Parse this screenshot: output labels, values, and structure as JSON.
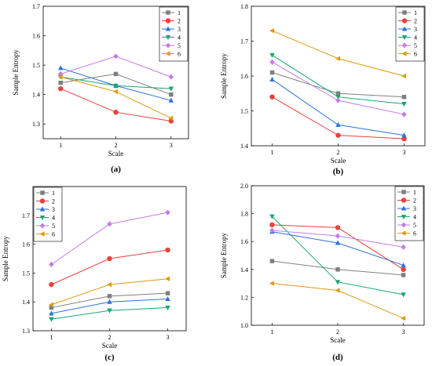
{
  "chart_data": [
    {
      "type": "line",
      "panel_label": "(a)",
      "x": [
        1,
        2,
        3
      ],
      "x_ticks": [
        "1",
        "2",
        "3"
      ],
      "xlabel": "Scale",
      "ylabel": "Sample Entropy",
      "ylim": [
        1.25,
        1.7
      ],
      "y_ticks": [
        "1.3",
        "1.4",
        "1.5",
        "1.6",
        "1.7"
      ],
      "legend_position": "top-right",
      "series": [
        {
          "name": "1",
          "values": [
            1.44,
            1.47,
            1.4
          ]
        },
        {
          "name": "2",
          "values": [
            1.42,
            1.34,
            1.31
          ]
        },
        {
          "name": "3",
          "values": [
            1.49,
            1.43,
            1.38
          ]
        },
        {
          "name": "4",
          "values": [
            1.46,
            1.43,
            1.42
          ]
        },
        {
          "name": "5",
          "values": [
            1.47,
            1.53,
            1.46
          ]
        },
        {
          "name": "6",
          "values": [
            1.46,
            1.41,
            1.32
          ]
        }
      ]
    },
    {
      "type": "line",
      "panel_label": "(b)",
      "x": [
        1,
        2,
        3
      ],
      "x_ticks": [
        "1",
        "2",
        "3"
      ],
      "xlabel": "Scale",
      "ylabel": "Sample Entropy",
      "ylim": [
        1.4,
        1.8
      ],
      "y_ticks": [
        "1.4",
        "1.5",
        "1.6",
        "1.7",
        "1.8"
      ],
      "legend_position": "top-right",
      "series": [
        {
          "name": "1",
          "values": [
            1.61,
            1.55,
            1.54
          ]
        },
        {
          "name": "2",
          "values": [
            1.54,
            1.43,
            1.42
          ]
        },
        {
          "name": "3",
          "values": [
            1.59,
            1.46,
            1.43
          ]
        },
        {
          "name": "4",
          "values": [
            1.66,
            1.54,
            1.52
          ]
        },
        {
          "name": "5",
          "values": [
            1.64,
            1.53,
            1.49
          ]
        },
        {
          "name": "6",
          "values": [
            1.73,
            1.65,
            1.6
          ]
        }
      ]
    },
    {
      "type": "line",
      "panel_label": "(c)",
      "x": [
        1,
        2,
        3
      ],
      "x_ticks": [
        "1",
        "2",
        "3"
      ],
      "xlabel": "Scale",
      "ylabel": "Sample Entropy",
      "ylim": [
        1.3,
        1.8
      ],
      "y_ticks": [
        "1.3",
        "1.4",
        "1.5",
        "1.6",
        "1.7"
      ],
      "legend_position": "top-left",
      "series": [
        {
          "name": "1",
          "values": [
            1.38,
            1.42,
            1.43
          ]
        },
        {
          "name": "2",
          "values": [
            1.46,
            1.55,
            1.58
          ]
        },
        {
          "name": "3",
          "values": [
            1.36,
            1.4,
            1.41
          ]
        },
        {
          "name": "4",
          "values": [
            1.34,
            1.37,
            1.38
          ]
        },
        {
          "name": "5",
          "values": [
            1.53,
            1.67,
            1.71
          ]
        },
        {
          "name": "6",
          "values": [
            1.39,
            1.46,
            1.48
          ]
        }
      ]
    },
    {
      "type": "line",
      "panel_label": "(d)",
      "x": [
        1,
        2,
        3
      ],
      "x_ticks": [
        "1",
        "2",
        "3"
      ],
      "xlabel": "Scale",
      "ylabel": "Sample Entropy",
      "ylim": [
        1.0,
        2.0
      ],
      "y_ticks": [
        "1.0",
        "1.2",
        "1.4",
        "1.6",
        "1.8",
        "2.0"
      ],
      "legend_position": "top-right",
      "series": [
        {
          "name": "1",
          "values": [
            1.46,
            1.4,
            1.36
          ]
        },
        {
          "name": "2",
          "values": [
            1.72,
            1.7,
            1.4
          ]
        },
        {
          "name": "3",
          "values": [
            1.67,
            1.59,
            1.43
          ]
        },
        {
          "name": "4",
          "values": [
            1.78,
            1.31,
            1.22
          ]
        },
        {
          "name": "5",
          "values": [
            1.68,
            1.64,
            1.56
          ]
        },
        {
          "name": "6",
          "values": [
            1.3,
            1.25,
            1.05
          ]
        }
      ]
    }
  ],
  "series_styles": [
    {
      "color": "#7f7f7f",
      "marker": "square"
    },
    {
      "color": "#e8413c",
      "marker": "circle"
    },
    {
      "color": "#2d72d9",
      "marker": "triangle-up"
    },
    {
      "color": "#17a673",
      "marker": "triangle-down"
    },
    {
      "color": "#c47be8",
      "marker": "diamond"
    },
    {
      "color": "#e09a13",
      "marker": "triangle-left"
    }
  ]
}
